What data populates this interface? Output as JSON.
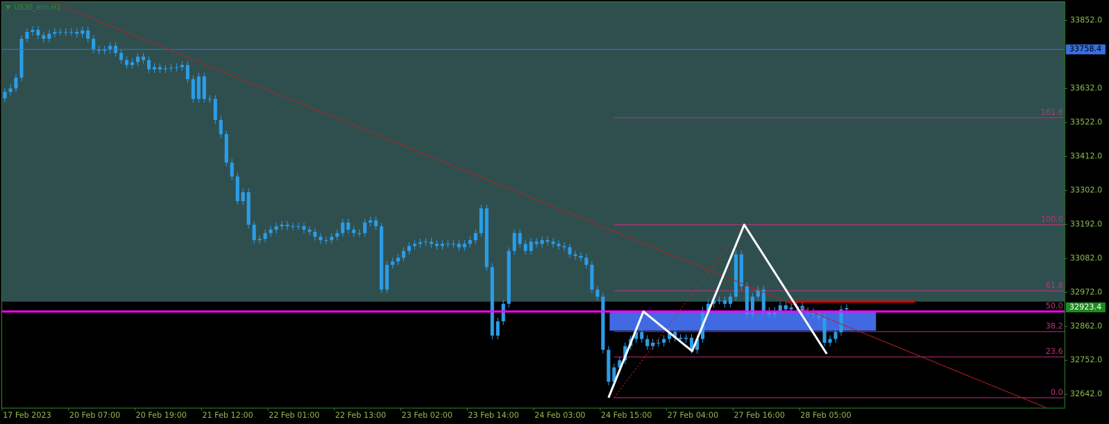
{
  "chart_data": {
    "type": "candlestick",
    "title": "US30_ecn,H1",
    "ylim": [
      32598.5,
      33911.5
    ],
    "yticks": [
      {
        "value": 33852,
        "label": "33852.0"
      },
      {
        "value": 33632,
        "label": "33632.0"
      },
      {
        "value": 33522,
        "label": "33522.0"
      },
      {
        "value": 33412,
        "label": "33412.0"
      },
      {
        "value": 33302,
        "label": "33302.0"
      },
      {
        "value": 33192,
        "label": "33192.0"
      },
      {
        "value": 33082,
        "label": "33082.0"
      },
      {
        "value": 32972,
        "label": "32972.0"
      },
      {
        "value": 32862,
        "label": "32862.0"
      },
      {
        "value": 32752,
        "label": "32752.0"
      },
      {
        "value": 32642,
        "label": "32642.0"
      }
    ],
    "categories": [
      "17 Feb 2023",
      null,
      null,
      null,
      null,
      null,
      null,
      null,
      null,
      null,
      null,
      null,
      "20 Feb 07:00",
      null,
      null,
      null,
      null,
      null,
      null,
      null,
      null,
      null,
      null,
      null,
      "20 Feb 19:00",
      null,
      null,
      null,
      null,
      null,
      null,
      null,
      null,
      null,
      null,
      null,
      "21 Feb 12:00",
      null,
      null,
      null,
      null,
      null,
      null,
      null,
      null,
      null,
      null,
      null,
      "22 Feb 01:00",
      null,
      null,
      null,
      null,
      null,
      null,
      null,
      null,
      null,
      null,
      null,
      "22 Feb 13:00",
      null,
      null,
      null,
      null,
      null,
      null,
      null,
      null,
      null,
      null,
      null,
      "23 Feb 02:00",
      null,
      null,
      null,
      null,
      null,
      null,
      null,
      null,
      null,
      null,
      null,
      "23 Feb 14:00",
      null,
      null,
      null,
      null,
      null,
      null,
      null,
      null,
      null,
      null,
      null,
      "24 Feb 03:00",
      null,
      null,
      null,
      null,
      null,
      null,
      null,
      null,
      null,
      null,
      null,
      "24 Feb 15:00",
      null,
      null,
      null,
      null,
      null,
      null,
      null,
      null,
      null,
      null,
      null,
      "27 Feb 04:00",
      null,
      null,
      null,
      null,
      null,
      null,
      null,
      null,
      null,
      null,
      null,
      "27 Feb 16:00",
      null,
      null,
      null,
      null,
      null,
      null,
      null,
      null,
      null,
      null,
      null,
      "28 Feb 05:00",
      null,
      null,
      null,
      null,
      null,
      null,
      null,
      null
    ],
    "candle_color": "#2b9de8",
    "candles": [
      [
        33600,
        33633,
        33588,
        33621
      ],
      [
        33621,
        33644,
        33609,
        33632
      ],
      [
        33632,
        33679,
        33620,
        33667
      ],
      [
        33667,
        33805,
        33655,
        33793
      ],
      [
        33793,
        33827,
        33781,
        33815
      ],
      [
        33815,
        33834,
        33803,
        33822
      ],
      [
        33822,
        33834,
        33792,
        33804
      ],
      [
        33804,
        33816,
        33781,
        33793
      ],
      [
        33793,
        33821,
        33781,
        33809
      ],
      [
        33809,
        33827,
        33797,
        33815
      ],
      [
        33815,
        33827,
        33803,
        33815
      ],
      [
        33815,
        33827,
        33803,
        33815
      ],
      [
        33815,
        33827,
        33803,
        33815
      ],
      [
        33815,
        33827,
        33797,
        33809
      ],
      [
        33809,
        33832,
        33797,
        33820
      ],
      [
        33820,
        33832,
        33781,
        33793
      ],
      [
        33793,
        33805,
        33746,
        33758
      ],
      [
        33758,
        33770,
        33742,
        33754
      ],
      [
        33754,
        33770,
        33742,
        33758
      ],
      [
        33758,
        33782,
        33746,
        33770
      ],
      [
        33770,
        33782,
        33735,
        33747
      ],
      [
        33747,
        33759,
        33712,
        33724
      ],
      [
        33724,
        33736,
        33696,
        33708
      ],
      [
        33708,
        33729,
        33696,
        33717
      ],
      [
        33717,
        33747,
        33705,
        33735
      ],
      [
        33735,
        33747,
        33712,
        33724
      ],
      [
        33724,
        33736,
        33682,
        33694
      ],
      [
        33694,
        33713,
        33682,
        33701
      ],
      [
        33701,
        33713,
        33682,
        33694
      ],
      [
        33694,
        33709,
        33682,
        33697
      ],
      [
        33697,
        33711,
        33685,
        33699
      ],
      [
        33699,
        33713,
        33687,
        33701
      ],
      [
        33701,
        33720,
        33689,
        33708
      ],
      [
        33708,
        33720,
        33650,
        33662
      ],
      [
        33662,
        33674,
        33586,
        33598
      ],
      [
        33598,
        33683,
        33586,
        33671
      ],
      [
        33671,
        33683,
        33586,
        33598
      ],
      [
        33598,
        33610,
        33586,
        33598
      ],
      [
        33598,
        33610,
        33518,
        33530
      ],
      [
        33530,
        33542,
        33472,
        33484
      ],
      [
        33484,
        33496,
        33380,
        33392
      ],
      [
        33392,
        33404,
        33335,
        33347
      ],
      [
        33347,
        33359,
        33255,
        33267
      ],
      [
        33267,
        33308,
        33255,
        33296
      ],
      [
        33296,
        33308,
        33179,
        33191
      ],
      [
        33191,
        33203,
        33129,
        33141
      ],
      [
        33141,
        33157,
        33129,
        33145
      ],
      [
        33145,
        33176,
        33133,
        33164
      ],
      [
        33164,
        33187,
        33152,
        33175
      ],
      [
        33175,
        33198,
        33163,
        33186
      ],
      [
        33186,
        33203,
        33174,
        33191
      ],
      [
        33191,
        33203,
        33174,
        33186
      ],
      [
        33186,
        33198,
        33174,
        33186
      ],
      [
        33186,
        33198,
        33174,
        33186
      ],
      [
        33186,
        33198,
        33163,
        33175
      ],
      [
        33175,
        33187,
        33156,
        33168
      ],
      [
        33168,
        33180,
        33140,
        33152
      ],
      [
        33152,
        33164,
        33129,
        33141
      ],
      [
        33141,
        33153,
        33129,
        33141
      ],
      [
        33141,
        33164,
        33129,
        33152
      ],
      [
        33152,
        33176,
        33140,
        33164
      ],
      [
        33164,
        33210,
        33152,
        33198
      ],
      [
        33198,
        33210,
        33163,
        33175
      ],
      [
        33175,
        33187,
        33152,
        33164
      ],
      [
        33164,
        33176,
        33152,
        33164
      ],
      [
        33164,
        33210,
        33152,
        33198
      ],
      [
        33198,
        33217,
        33186,
        33205
      ],
      [
        33205,
        33217,
        33174,
        33186
      ],
      [
        33186,
        33198,
        32969,
        32981
      ],
      [
        32981,
        33073,
        32969,
        33061
      ],
      [
        33061,
        33084,
        33049,
        33072
      ],
      [
        33072,
        33096,
        33060,
        33084
      ],
      [
        33084,
        33118,
        33072,
        33106
      ],
      [
        33106,
        33134,
        33094,
        33122
      ],
      [
        33122,
        33141,
        33110,
        33129
      ],
      [
        33129,
        33146,
        33117,
        33134
      ],
      [
        33134,
        33148,
        33122,
        33136
      ],
      [
        33136,
        33148,
        33117,
        33129
      ],
      [
        33129,
        33141,
        33110,
        33122
      ],
      [
        33122,
        33141,
        33110,
        33129
      ],
      [
        33129,
        33141,
        33117,
        33129
      ],
      [
        33129,
        33141,
        33117,
        33129
      ],
      [
        33129,
        33141,
        33106,
        33118
      ],
      [
        33118,
        33141,
        33106,
        33129
      ],
      [
        33129,
        33153,
        33117,
        33141
      ],
      [
        33141,
        33176,
        33129,
        33164
      ],
      [
        33164,
        33256,
        33152,
        33244
      ],
      [
        33244,
        33256,
        33042,
        33054
      ],
      [
        33054,
        33066,
        32820,
        32832
      ],
      [
        32832,
        32890,
        32820,
        32878
      ],
      [
        32878,
        32947,
        32866,
        32935
      ],
      [
        32935,
        33118,
        32923,
        33106
      ],
      [
        33106,
        33176,
        33094,
        33164
      ],
      [
        33164,
        33176,
        33117,
        33129
      ],
      [
        33129,
        33141,
        33094,
        33106
      ],
      [
        33106,
        33148,
        33094,
        33136
      ],
      [
        33136,
        33148,
        33117,
        33129
      ],
      [
        33129,
        33153,
        33117,
        33141
      ],
      [
        33141,
        33153,
        33124,
        33136
      ],
      [
        33136,
        33148,
        33117,
        33129
      ],
      [
        33129,
        33141,
        33110,
        33122
      ],
      [
        33122,
        33134,
        33106,
        33118
      ],
      [
        33118,
        33130,
        33083,
        33095
      ],
      [
        33095,
        33107,
        33078,
        33090
      ],
      [
        33090,
        33102,
        33072,
        33084
      ],
      [
        33084,
        33096,
        33049,
        33061
      ],
      [
        33061,
        33073,
        32969,
        32981
      ],
      [
        32981,
        32993,
        32946,
        32958
      ],
      [
        32958,
        32970,
        32774,
        32786
      ],
      [
        32786,
        32798,
        32671,
        32683
      ],
      [
        32683,
        32741,
        32671,
        32729
      ],
      [
        32729,
        32764,
        32717,
        32752
      ],
      [
        32752,
        32810,
        32740,
        32798
      ],
      [
        32798,
        32833,
        32786,
        32821
      ],
      [
        32821,
        32855,
        32809,
        32843
      ],
      [
        32843,
        32855,
        32809,
        32821
      ],
      [
        32821,
        32833,
        32786,
        32798
      ],
      [
        32798,
        32821,
        32786,
        32809
      ],
      [
        32809,
        32821,
        32797,
        32809
      ],
      [
        32809,
        32833,
        32797,
        32821
      ],
      [
        32821,
        32855,
        32809,
        32843
      ],
      [
        32843,
        32855,
        32813,
        32825
      ],
      [
        32825,
        32837,
        32809,
        32821
      ],
      [
        32821,
        32837,
        32809,
        32825
      ],
      [
        32825,
        32837,
        32774,
        32786
      ],
      [
        32786,
        32833,
        32774,
        32821
      ],
      [
        32821,
        32924,
        32809,
        32912
      ],
      [
        32912,
        32947,
        32900,
        32935
      ],
      [
        32935,
        32958,
        32923,
        32946
      ],
      [
        32946,
        32958,
        32934,
        32946
      ],
      [
        32946,
        32958,
        32923,
        32935
      ],
      [
        32935,
        32970,
        32923,
        32958
      ],
      [
        32958,
        33107,
        32946,
        33095
      ],
      [
        33095,
        33107,
        32980,
        32992
      ],
      [
        32992,
        33004,
        32889,
        32901
      ],
      [
        32901,
        32970,
        32889,
        32958
      ],
      [
        32958,
        32993,
        32946,
        32981
      ],
      [
        32981,
        32993,
        32900,
        32912
      ],
      [
        32912,
        32924,
        32889,
        32901
      ],
      [
        32901,
        32924,
        32889,
        32912
      ],
      [
        32912,
        32942,
        32900,
        32930
      ],
      [
        32930,
        32942,
        32905,
        32917
      ],
      [
        32917,
        32935,
        32905,
        32923
      ],
      [
        32923,
        32940,
        32911,
        32928
      ],
      [
        32928,
        32940,
        32900,
        32912
      ],
      [
        32912,
        32924,
        32896,
        32908
      ],
      [
        32908,
        32920,
        32889,
        32901
      ],
      [
        32901,
        32913,
        32877,
        32889
      ],
      [
        32889,
        32901,
        32797,
        32809
      ],
      [
        32809,
        32833,
        32797,
        32821
      ],
      [
        32821,
        32855,
        32809,
        32843
      ],
      [
        32843,
        32929,
        32831,
        32917
      ],
      [
        32917,
        32933,
        32905,
        32921
      ]
    ],
    "background_zone": {
      "bottom": 32942,
      "color": "#2f4f4f"
    },
    "trendline": {
      "x": [
        8.6,
        188
      ],
      "y": [
        33911,
        32599
      ],
      "color": "#b22222"
    },
    "rectangle": {
      "x": [
        109.2,
        157.3
      ],
      "y": [
        32848,
        32910
      ],
      "color": "#4169e1"
    },
    "red_level": {
      "x": [
        141.4,
        164.3
      ],
      "value": 32942,
      "color": "#e00000"
    },
    "magenta_line": {
      "value": 32910,
      "color": "#ff00ff"
    },
    "price_line": {
      "value": 33758.4,
      "color": "#3a6fe0"
    },
    "bid": {
      "value": 32923.4,
      "color": "#1c8c1c"
    },
    "zigzag": {
      "x": [
        109,
        115.3,
        124.1,
        133.5,
        148.4
      ],
      "y": [
        32631,
        32910,
        32782,
        33191,
        32773
      ],
      "color": "#ffffff"
    },
    "fib_base": {
      "x": [
        110,
        133.5
      ],
      "y": [
        32631,
        33191
      ],
      "color": "#d02020"
    },
    "fibonacci": {
      "start": 110,
      "low": 32631,
      "high": 33191,
      "color": "#c0307a",
      "levels": [
        {
          "value": 0,
          "label": "0.0"
        },
        {
          "value": 23.6,
          "label": "23.6"
        },
        {
          "value": 38.2,
          "label": "38.2"
        },
        {
          "value": 50,
          "label": "50.0"
        },
        {
          "value": 61.8,
          "label": "61.8"
        },
        {
          "value": 100,
          "label": "100.0"
        },
        {
          "value": 161.8,
          "label": "161.8"
        }
      ]
    }
  }
}
